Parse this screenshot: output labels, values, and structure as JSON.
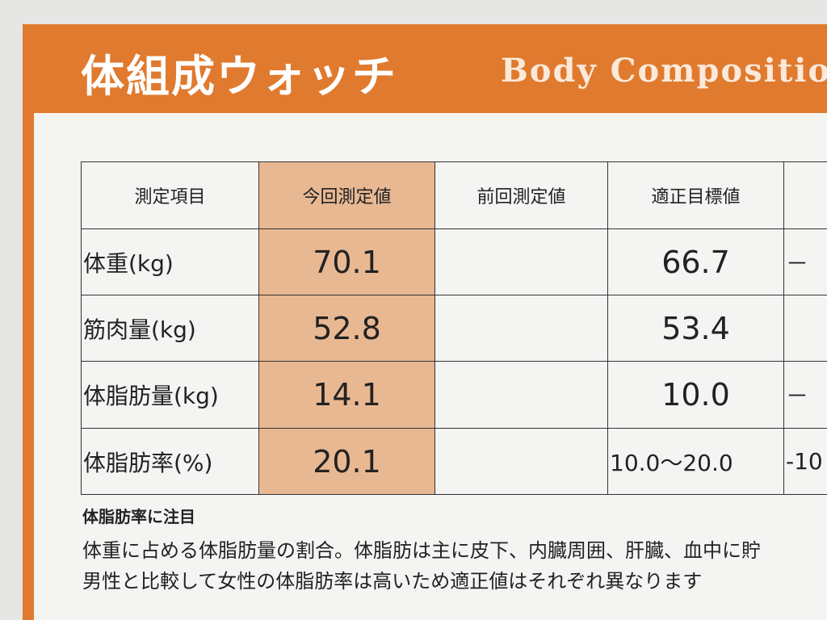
{
  "header": {
    "title": "体組成ウォッチ",
    "subtitle": "Body Compositio"
  },
  "table": {
    "columns": [
      "測定項目",
      "今回測定値",
      "前回測定値",
      "適正目標値",
      null
    ],
    "rows": [
      [
        "体重(kg)",
        "70.1",
        null,
        "66.7",
        "－"
      ],
      [
        "筋肉量(kg)",
        "52.8",
        null,
        "53.4",
        null
      ],
      [
        "体脂肪量(kg)",
        "14.1",
        null,
        "10.0",
        "－"
      ],
      [
        "体脂肪率(%)",
        "20.1",
        null,
        "10.0～20.0",
        "-10"
      ]
    ]
  },
  "note": {
    "heading": "体脂肪率に注目",
    "lines": [
      "体重に占める体脂肪量の割合。体脂肪は主に皮下、内臓周囲、肝臓、血中に貯",
      "男性と比較して女性の体脂肪率は高いため適正値はそれぞれ異なります"
    ]
  }
}
